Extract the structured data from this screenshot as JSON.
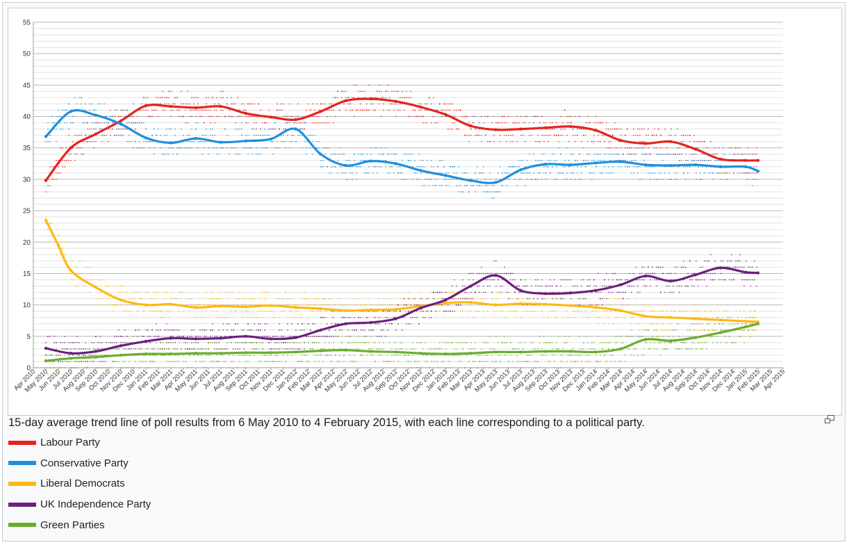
{
  "caption": "15-day average trend line of poll results from 6 May 2010 to 4 February 2015, with each line corresponding to a political party.",
  "enlarge_icon": "magnify-clip-icon",
  "colors": {
    "labour": "#e4231f",
    "conservative": "#1f8fdc",
    "libdem": "#fdb913",
    "ukip": "#6d1f7f",
    "green": "#6aad2d",
    "grid": "#d0d0d0"
  },
  "legend": [
    {
      "label": "Labour Party",
      "color": "#e4231f"
    },
    {
      "label": "Conservative Party",
      "color": "#1f8fdc"
    },
    {
      "label": "Liberal Democrats",
      "color": "#fdb913"
    },
    {
      "label": "UK Independence Party",
      "color": "#6d1f7f"
    },
    {
      "label": "Green Parties",
      "color": "#6aad2d"
    }
  ],
  "chart_data": {
    "type": "line",
    "title": "",
    "xlabel": "",
    "ylabel": "",
    "ylim": [
      0,
      55
    ],
    "y_ticks": [
      0,
      5,
      10,
      15,
      20,
      25,
      30,
      35,
      40,
      45,
      50,
      55
    ],
    "x_tick_labels": [
      "Apr 2010",
      "May 2010",
      "Jun 2010",
      "Jul 2010",
      "Aug 2010",
      "Sep 2010",
      "Oct 2010",
      "Nov 2010",
      "Dec 2010",
      "Jan 2011",
      "Feb 2011",
      "Mar 2011",
      "Apr 2011",
      "May 2011",
      "Jun 2011",
      "Jul 2011",
      "Aug 2011",
      "Sep 2011",
      "Oct 2011",
      "Nov 2011",
      "Dec 2011",
      "Jan 2012",
      "Feb 2012",
      "Mar 2012",
      "Apr 2012",
      "May 2012",
      "Jun 2012",
      "Jul 2012",
      "Aug 2012",
      "Sep 2012",
      "Oct 2012",
      "Nov 2012",
      "Dec 2012",
      "Jan 2013",
      "Feb 2013",
      "Mar 2013",
      "Apr 2013",
      "May 2013",
      "Jun 2013",
      "Jul 2013",
      "Aug 2013",
      "Sep 2013",
      "Oct 2013",
      "Nov 2013",
      "Dec 2013",
      "Jan 2014",
      "Feb 2014",
      "Mar 2014",
      "Apr 2014",
      "May 2014",
      "Jun 2014",
      "Jul 2014",
      "Aug 2014",
      "Sep 2014",
      "Oct 2014",
      "Nov 2014",
      "Dec 2014",
      "Jan 2015",
      "Feb 2015",
      "Mar 2015",
      "Apr 2015"
    ],
    "grid": true,
    "legend_position": "bottom-left",
    "series": [
      {
        "name": "Labour Party",
        "color": "#e4231f",
        "x": [
          "May 2010",
          "Jul 2010",
          "Sep 2010",
          "Nov 2010",
          "Jan 2011",
          "Mar 2011",
          "May 2011",
          "Jul 2011",
          "Sep 2011",
          "Nov 2011",
          "Jan 2012",
          "Mar 2012",
          "May 2012",
          "Jul 2012",
          "Sep 2012",
          "Nov 2012",
          "Jan 2013",
          "Mar 2013",
          "May 2013",
          "Jul 2013",
          "Sep 2013",
          "Nov 2013",
          "Jan 2014",
          "Mar 2014",
          "May 2014",
          "Jul 2014",
          "Sep 2014",
          "Nov 2014",
          "Jan 2015",
          "Feb 2015"
        ],
        "values": [
          29.8,
          35,
          37.2,
          39.3,
          41.7,
          41.6,
          41.4,
          41.6,
          40.5,
          39.9,
          39.5,
          40.8,
          42.5,
          42.8,
          42.4,
          41.5,
          40.3,
          38.5,
          37.9,
          38.0,
          38.2,
          38.4,
          37.8,
          36.2,
          35.7,
          36.0,
          34.8,
          33.2,
          33.0,
          33.0
        ]
      },
      {
        "name": "Conservative Party",
        "color": "#1f8fdc",
        "x": [
          "May 2010",
          "Jul 2010",
          "Sep 2010",
          "Nov 2010",
          "Jan 2011",
          "Mar 2011",
          "May 2011",
          "Jul 2011",
          "Sep 2011",
          "Nov 2011",
          "Jan 2012",
          "Mar 2012",
          "May 2012",
          "Jul 2012",
          "Sep 2012",
          "Nov 2012",
          "Jan 2013",
          "Mar 2013",
          "May 2013",
          "Jul 2013",
          "Sep 2013",
          "Nov 2013",
          "Jan 2014",
          "Mar 2014",
          "May 2014",
          "Jul 2014",
          "Sep 2014",
          "Nov 2014",
          "Jan 2015",
          "Feb 2015"
        ],
        "values": [
          36.8,
          40.8,
          40.2,
          38.8,
          36.6,
          35.8,
          36.5,
          35.9,
          36.1,
          36.4,
          38.0,
          34.0,
          32.2,
          32.9,
          32.5,
          31.4,
          30.6,
          29.8,
          29.5,
          31.5,
          32.4,
          32.3,
          32.6,
          32.8,
          32.3,
          32.2,
          32.3,
          32.0,
          32.0,
          31.3
        ]
      },
      {
        "name": "Liberal Democrats",
        "color": "#fdb913",
        "x": [
          "May 2010",
          "Jun 2010",
          "Jul 2010",
          "Sep 2010",
          "Nov 2010",
          "Jan 2011",
          "Mar 2011",
          "May 2011",
          "Jul 2011",
          "Sep 2011",
          "Nov 2011",
          "Jan 2012",
          "Mar 2012",
          "May 2012",
          "Jul 2012",
          "Sep 2012",
          "Nov 2012",
          "Jan 2013",
          "Mar 2013",
          "May 2013",
          "Jul 2013",
          "Sep 2013",
          "Nov 2013",
          "Jan 2014",
          "Mar 2014",
          "May 2014",
          "Jul 2014",
          "Sep 2014",
          "Nov 2014",
          "Jan 2015",
          "Feb 2015"
        ],
        "values": [
          23.5,
          19.5,
          15.5,
          12.8,
          10.8,
          10.0,
          10.1,
          9.6,
          9.8,
          9.7,
          9.9,
          9.6,
          9.4,
          9.1,
          9.2,
          9.3,
          9.8,
          10.3,
          10.4,
          10.0,
          10.2,
          10.1,
          9.9,
          9.6,
          9.1,
          8.2,
          8.0,
          7.8,
          7.6,
          7.4,
          7.3
        ]
      },
      {
        "name": "UK Independence Party",
        "color": "#6d1f7f",
        "x": [
          "May 2010",
          "Jul 2010",
          "Sep 2010",
          "Nov 2010",
          "Jan 2011",
          "Mar 2011",
          "May 2011",
          "Jul 2011",
          "Sep 2011",
          "Nov 2011",
          "Jan 2012",
          "Mar 2012",
          "May 2012",
          "Jul 2012",
          "Sep 2012",
          "Nov 2012",
          "Jan 2013",
          "Mar 2013",
          "May 2013",
          "Jul 2013",
          "Sep 2013",
          "Nov 2013",
          "Jan 2014",
          "Mar 2014",
          "May 2014",
          "Jul 2014",
          "Sep 2014",
          "Nov 2014",
          "Jan 2015",
          "Feb 2015"
        ],
        "values": [
          3.1,
          2.3,
          2.6,
          3.5,
          4.2,
          4.7,
          4.6,
          4.7,
          5.0,
          4.6,
          4.8,
          6.0,
          7.0,
          7.2,
          7.8,
          9.5,
          10.8,
          13.0,
          14.7,
          12.3,
          11.8,
          11.9,
          12.3,
          13.2,
          14.6,
          13.8,
          14.8,
          15.9,
          15.2,
          15.1
        ]
      },
      {
        "name": "Green Parties",
        "color": "#6aad2d",
        "x": [
          "May 2010",
          "Jul 2010",
          "Sep 2010",
          "Nov 2010",
          "Jan 2011",
          "Mar 2011",
          "May 2011",
          "Jul 2011",
          "Sep 2011",
          "Nov 2011",
          "Jan 2012",
          "Mar 2012",
          "May 2012",
          "Jul 2012",
          "Sep 2012",
          "Nov 2012",
          "Jan 2013",
          "Mar 2013",
          "May 2013",
          "Jul 2013",
          "Sep 2013",
          "Nov 2013",
          "Jan 2014",
          "Mar 2014",
          "May 2014",
          "Jul 2014",
          "Sep 2014",
          "Nov 2014",
          "Jan 2015",
          "Feb 2015"
        ],
        "values": [
          1.1,
          1.5,
          1.7,
          2.0,
          2.2,
          2.2,
          2.3,
          2.3,
          2.4,
          2.4,
          2.5,
          2.7,
          2.8,
          2.6,
          2.5,
          2.3,
          2.2,
          2.3,
          2.5,
          2.5,
          2.6,
          2.6,
          2.5,
          3.0,
          4.5,
          4.3,
          4.8,
          5.6,
          6.5,
          7.0
        ]
      }
    ]
  }
}
